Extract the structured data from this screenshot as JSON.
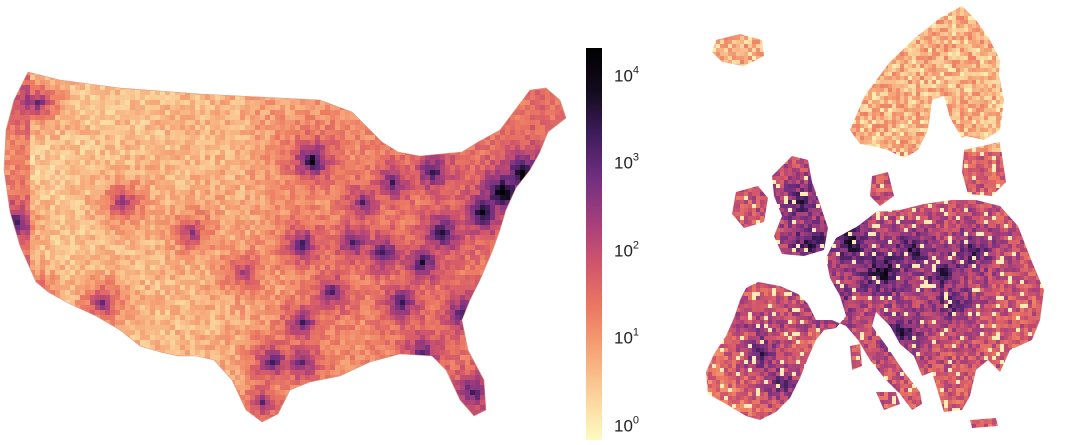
{
  "maps": [
    {
      "name": "us",
      "region": "Contiguous United States"
    },
    {
      "name": "europe",
      "region": "Europe"
    }
  ],
  "colorbar": {
    "scale": "log",
    "range": [
      1,
      30000
    ],
    "colormap": [
      "#fdfbc0",
      "#fbd39c",
      "#f6a678",
      "#ec7a62",
      "#d2566b",
      "#a53f7c",
      "#722f80",
      "#3f1d5c",
      "#120b1e",
      "#000000"
    ],
    "ticks": [
      {
        "value": 1,
        "base": "10",
        "exp": "0"
      },
      {
        "value": 10,
        "base": "10",
        "exp": "1"
      },
      {
        "value": 100,
        "base": "10",
        "exp": "2"
      },
      {
        "value": 1000,
        "base": "10",
        "exp": "3"
      },
      {
        "value": 10000,
        "base": "10",
        "exp": "4"
      }
    ]
  }
}
